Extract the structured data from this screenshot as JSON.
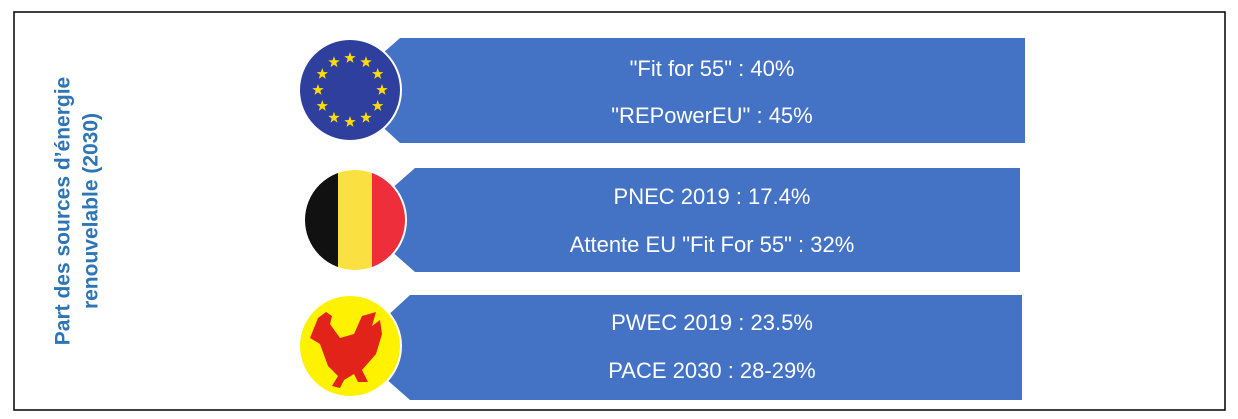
{
  "side_label": [
    "Part des sources d’énergie",
    "renouvelable (2030)"
  ],
  "rows": [
    {
      "lines": [
        "\"Fit for 55\" : 40%",
        "\"REPowerEU\" : 45%"
      ]
    },
    {
      "lines": [
        "PNEC 2019 : 17.4%",
        "Attente EU \"Fit For 55\" : 32%"
      ]
    },
    {
      "lines": [
        "PWEC 2019 : 23.5%",
        "PACE 2030 : 28-29%"
      ]
    }
  ]
}
